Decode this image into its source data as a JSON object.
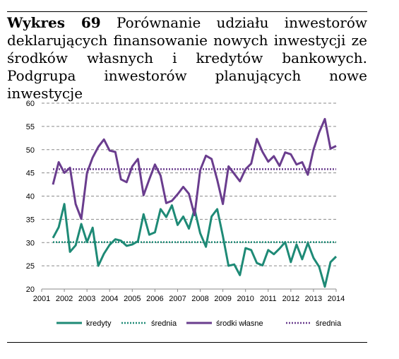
{
  "caption": {
    "label": "Wykres 69",
    "text": "Porównanie udziału inwestorów deklarujących finansowanie nowych inwestycji ze środków własnych i kredytów bankowych. Podgrupa inwestorów planujących nowe inwestycje"
  },
  "chart_data": {
    "type": "line",
    "title": "",
    "xlabel": "",
    "ylabel": "",
    "ylim": [
      20,
      60
    ],
    "yticks": [
      20,
      25,
      30,
      35,
      40,
      45,
      50,
      55,
      60
    ],
    "xlim": [
      2001,
      2014
    ],
    "xticks": [
      "2001",
      "2002",
      "2003",
      "2004",
      "2005",
      "2006",
      "2007",
      "2008",
      "2009",
      "2010",
      "2011",
      "2012",
      "2013",
      "2014"
    ],
    "grid": "horizontal dashed",
    "legend_position": "bottom",
    "series": [
      {
        "name": "kredyty",
        "color": "#1e8a76",
        "style": "solid",
        "x": [
          2001.5,
          2001.75,
          2002.0,
          2002.25,
          2002.5,
          2002.75,
          2003.0,
          2003.25,
          2003.5,
          2003.75,
          2004.0,
          2004.25,
          2004.5,
          2004.75,
          2005.0,
          2005.25,
          2005.5,
          2005.75,
          2006.0,
          2006.25,
          2006.5,
          2006.75,
          2007.0,
          2007.25,
          2007.5,
          2007.75,
          2008.0,
          2008.25,
          2008.5,
          2008.75,
          2009.0,
          2009.25,
          2009.5,
          2009.75,
          2010.0,
          2010.25,
          2010.5,
          2010.75,
          2011.0,
          2011.25,
          2011.5,
          2011.75,
          2012.0,
          2012.25,
          2012.5,
          2012.75,
          2013.0,
          2013.25,
          2013.5,
          2013.75,
          2014.0
        ],
        "values": [
          31.0,
          33.3,
          38.3,
          28.0,
          29.4,
          34.0,
          30.1,
          33.2,
          25.0,
          27.6,
          29.5,
          30.7,
          30.4,
          29.3,
          29.6,
          30.3,
          36.1,
          31.7,
          32.2,
          37.2,
          35.5,
          38.0,
          33.8,
          35.6,
          33.0,
          37.2,
          32.0,
          29.1,
          35.6,
          37.2,
          31.4,
          25.0,
          25.3,
          23.0,
          28.8,
          28.4,
          25.6,
          25.1,
          28.4,
          27.5,
          28.7,
          30.1,
          25.8,
          29.6,
          26.4,
          29.9,
          26.7,
          24.8,
          20.5,
          25.8,
          27.0
        ]
      },
      {
        "name": "średnia",
        "color": "#1e8a76",
        "style": "dotted",
        "x": [
          2001.5,
          2014.0
        ],
        "values": [
          30.1,
          30.1
        ]
      },
      {
        "name": "środki własne",
        "color": "#6a3d8e",
        "style": "solid",
        "x": [
          2001.5,
          2001.75,
          2002.0,
          2002.25,
          2002.5,
          2002.75,
          2003.0,
          2003.25,
          2003.5,
          2003.75,
          2004.0,
          2004.25,
          2004.5,
          2004.75,
          2005.0,
          2005.25,
          2005.5,
          2005.75,
          2006.0,
          2006.25,
          2006.5,
          2006.75,
          2007.0,
          2007.25,
          2007.5,
          2007.75,
          2008.0,
          2008.25,
          2008.5,
          2008.75,
          2009.0,
          2009.25,
          2009.5,
          2009.75,
          2010.0,
          2010.25,
          2010.5,
          2010.75,
          2011.0,
          2011.25,
          2011.5,
          2011.75,
          2012.0,
          2012.25,
          2012.5,
          2012.75,
          2013.0,
          2013.25,
          2013.5,
          2013.75,
          2014.0
        ],
        "values": [
          42.5,
          47.3,
          45.0,
          46.1,
          38.3,
          35.1,
          45.0,
          48.3,
          50.6,
          52.2,
          49.8,
          49.5,
          43.6,
          43.0,
          46.4,
          48.0,
          40.2,
          43.6,
          46.8,
          44.4,
          38.5,
          39.0,
          40.4,
          42.0,
          40.5,
          35.9,
          45.6,
          48.7,
          48.0,
          43.5,
          38.3,
          46.4,
          44.8,
          43.2,
          45.8,
          47.0,
          52.3,
          49.5,
          47.4,
          48.6,
          46.5,
          49.4,
          49.0,
          46.8,
          47.3,
          44.6,
          50.0,
          53.7,
          56.6,
          50.2,
          50.8
        ]
      },
      {
        "name": "średnia",
        "color": "#6a3d8e",
        "style": "dotted",
        "x": [
          2001.5,
          2014.0
        ],
        "values": [
          45.8,
          45.8
        ]
      }
    ]
  }
}
